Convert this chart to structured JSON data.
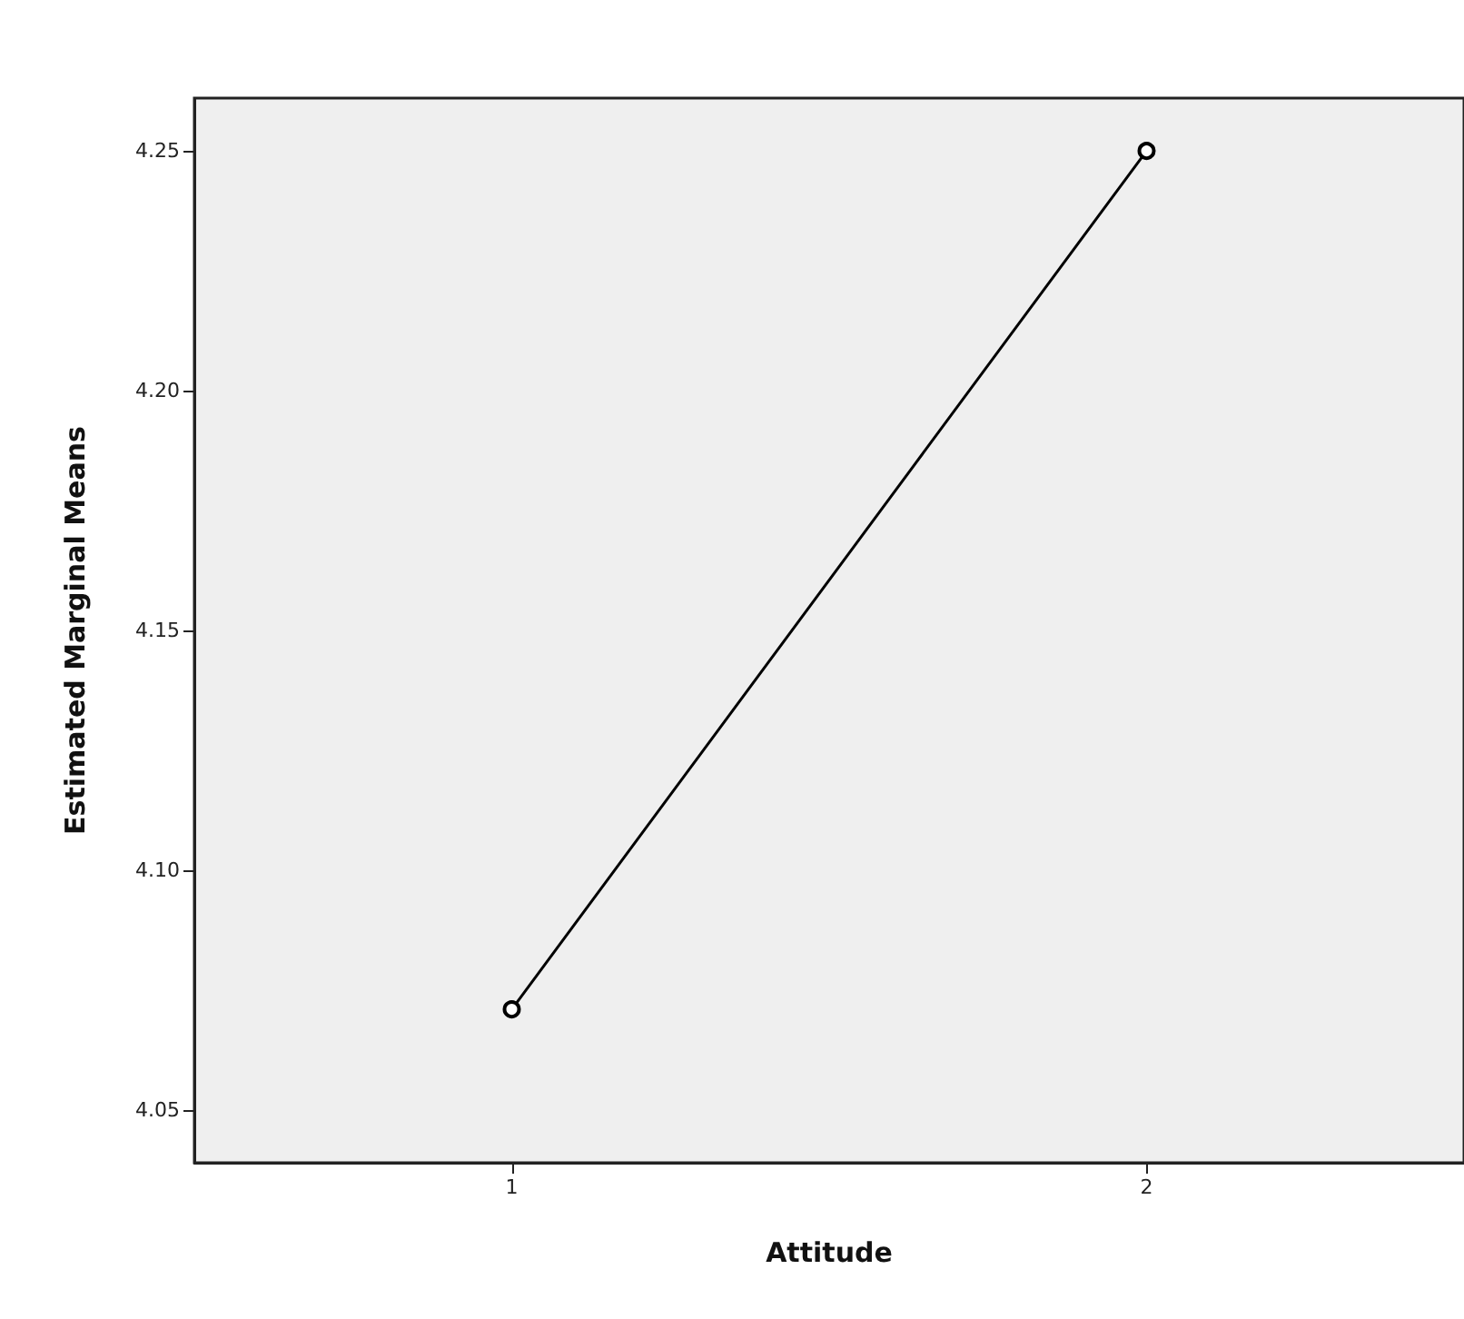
{
  "chart_data": {
    "type": "line",
    "xlabel": "Attitude",
    "ylabel": "Estimated Marginal Means",
    "categories": [
      "1",
      "2"
    ],
    "series": [
      {
        "color": "#000000",
        "values": [
          4.071,
          4.25
        ]
      }
    ],
    "ylim": [
      4.039,
      4.261
    ],
    "yticks": [
      {
        "value": 4.05,
        "label": "4.05"
      },
      {
        "value": 4.1,
        "label": "4.10"
      },
      {
        "value": 4.15,
        "label": "4.15"
      },
      {
        "value": 4.2,
        "label": "4.20"
      },
      {
        "value": 4.25,
        "label": "4.25"
      }
    ],
    "marker": "circle",
    "line_style": "solid",
    "grid": false
  }
}
